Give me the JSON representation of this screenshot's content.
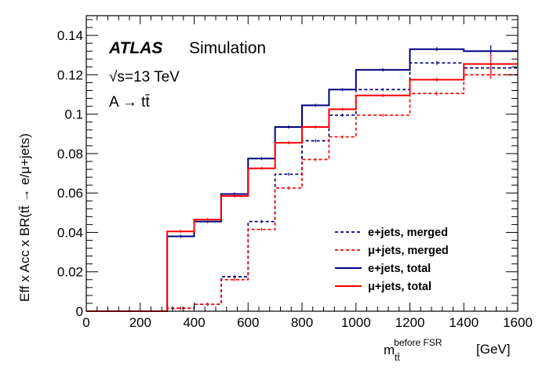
{
  "chart_data": {
    "type": "line",
    "style": "step-histogram",
    "title_block": {
      "experiment": "ATLAS",
      "label": "Simulation",
      "energy": "√s=13 TeV",
      "process": "A → tt̄"
    },
    "xlabel": {
      "base": "m",
      "subscript": "tt̄",
      "superscript": "before FSR",
      "unit": "[GeV]"
    },
    "ylabel": "Eff x Acc x BR(tt̄ → e/μ+jets)",
    "xlim": [
      0,
      1600
    ],
    "ylim": [
      0,
      0.15
    ],
    "xticks": [
      0,
      200,
      400,
      600,
      800,
      1000,
      1200,
      1400,
      1600
    ],
    "yticks": [
      0,
      0.02,
      0.04,
      0.06,
      0.08,
      0.1,
      0.12,
      0.14
    ],
    "ytick_labels": [
      "0",
      "0.02",
      "0.04",
      "0.06",
      "0.08",
      "0.1",
      "0.12",
      "0.14"
    ],
    "bin_edges": [
      0,
      300,
      400,
      500,
      600,
      700,
      800,
      900,
      1000,
      1200,
      1400,
      1600
    ],
    "legend_position": "bottom-right",
    "series": [
      {
        "name": "e+jets, merged",
        "color": "#000080",
        "dash": "dashed",
        "values": [
          0,
          0.0015,
          0.0035,
          0.0175,
          0.0455,
          0.0695,
          0.0865,
          0.0995,
          0.1125,
          0.126,
          0.1235
        ],
        "errors": [
          0,
          0.0003,
          0.0004,
          0.0008,
          0.0008,
          0.0008,
          0.0008,
          0.0008,
          0.0008,
          0.001,
          0.002
        ]
      },
      {
        "name": "μ+jets, merged",
        "color": "#ff0000",
        "dash": "dashed",
        "values": [
          0,
          0.0015,
          0.0035,
          0.016,
          0.0415,
          0.0625,
          0.077,
          0.0885,
          0.0995,
          0.1105,
          0.12
        ],
        "errors": [
          0,
          0.0003,
          0.0004,
          0.0008,
          0.0008,
          0.0008,
          0.0008,
          0.0008,
          0.0008,
          0.001,
          0.002
        ]
      },
      {
        "name": "e+jets, total",
        "color": "#000080",
        "dash": "solid",
        "values": [
          0,
          0.038,
          0.0455,
          0.0595,
          0.0775,
          0.0935,
          0.1045,
          0.1125,
          0.1225,
          0.133,
          0.132
        ],
        "errors": [
          0,
          0.0005,
          0.0005,
          0.0006,
          0.0007,
          0.0007,
          0.0008,
          0.0008,
          0.0008,
          0.001,
          0.003
        ]
      },
      {
        "name": "μ+jets, total",
        "color": "#ff0000",
        "dash": "solid",
        "values": [
          0,
          0.0405,
          0.0465,
          0.0585,
          0.0725,
          0.0855,
          0.0935,
          0.1025,
          0.1095,
          0.1175,
          0.1255
        ],
        "errors": [
          0,
          0.0005,
          0.0005,
          0.0006,
          0.0007,
          0.0007,
          0.0008,
          0.0008,
          0.0008,
          0.001,
          0.005
        ]
      }
    ]
  }
}
